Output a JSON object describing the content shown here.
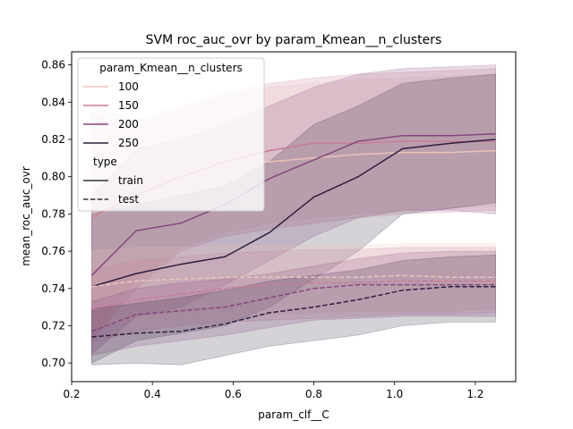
{
  "chart_data": {
    "type": "line",
    "title": "SVM roc_auc_ovr by param_Kmean__n_clusters",
    "xlabel": "param_clf__C",
    "ylabel": "mean_roc_auc_ovr",
    "xlim": [
      0.2,
      1.3
    ],
    "ylim": [
      0.69,
      0.867
    ],
    "xticks": [
      "0.2",
      "0.4",
      "0.6",
      "0.8",
      "1.0",
      "1.2"
    ],
    "yticks": [
      "0.70",
      "0.72",
      "0.74",
      "0.76",
      "0.78",
      "0.80",
      "0.82",
      "0.84",
      "0.86"
    ],
    "x": [
      0.25,
      0.36,
      0.47,
      0.58,
      0.69,
      0.8,
      0.91,
      1.02,
      1.14,
      1.25
    ],
    "grid": false,
    "legend": {
      "placement": "top-left",
      "hue_title": "param_Kmean__n_clusters",
      "style_title": "type",
      "hue_entries": [
        "100",
        "150",
        "200",
        "250"
      ],
      "style_entries": [
        "train",
        "test"
      ]
    },
    "colors": {
      "100": "#ebc4b8",
      "150": "#c97b98",
      "200": "#85487d",
      "250": "#2d1e3e"
    },
    "series": [
      {
        "name": "100",
        "type": "train",
        "values": [
          0.778,
          0.789,
          0.802,
          0.807,
          0.808,
          0.81,
          0.812,
          0.813,
          0.813,
          0.814
        ],
        "lower": [
          0.715,
          0.745,
          0.762,
          0.77,
          0.775,
          0.778,
          0.78,
          0.781,
          0.783,
          0.784
        ],
        "upper": [
          0.833,
          0.826,
          0.836,
          0.843,
          0.848,
          0.85,
          0.852,
          0.853,
          0.854,
          0.855
        ]
      },
      {
        "name": "150",
        "type": "train",
        "values": [
          0.778,
          0.79,
          0.8,
          0.808,
          0.814,
          0.818,
          0.818,
          0.819,
          0.819,
          0.819
        ],
        "lower": [
          0.712,
          0.74,
          0.76,
          0.768,
          0.772,
          0.775,
          0.778,
          0.78,
          0.781,
          0.782
        ],
        "upper": [
          0.838,
          0.83,
          0.838,
          0.845,
          0.85,
          0.853,
          0.855,
          0.856,
          0.857,
          0.858
        ]
      },
      {
        "name": "200",
        "type": "train",
        "values": [
          0.747,
          0.771,
          0.775,
          0.785,
          0.799,
          0.809,
          0.819,
          0.822,
          0.822,
          0.823
        ],
        "lower": [
          0.705,
          0.725,
          0.73,
          0.742,
          0.755,
          0.768,
          0.778,
          0.782,
          0.782,
          0.78
        ],
        "upper": [
          0.79,
          0.815,
          0.82,
          0.828,
          0.838,
          0.848,
          0.855,
          0.858,
          0.859,
          0.86
        ]
      },
      {
        "name": "250",
        "type": "train",
        "values": [
          0.741,
          0.748,
          0.753,
          0.757,
          0.77,
          0.789,
          0.8,
          0.815,
          0.818,
          0.82
        ],
        "lower": [
          0.7,
          0.712,
          0.716,
          0.72,
          0.73,
          0.745,
          0.76,
          0.78,
          0.783,
          0.786
        ],
        "upper": [
          0.78,
          0.785,
          0.79,
          0.795,
          0.808,
          0.828,
          0.838,
          0.85,
          0.853,
          0.855
        ]
      },
      {
        "name": "100",
        "type": "test",
        "values": [
          0.741,
          0.744,
          0.745,
          0.746,
          0.746,
          0.746,
          0.746,
          0.747,
          0.746,
          0.746
        ],
        "lower": [
          0.718,
          0.724,
          0.725,
          0.726,
          0.726,
          0.727,
          0.728,
          0.728,
          0.728,
          0.729
        ],
        "upper": [
          0.76,
          0.762,
          0.762,
          0.763,
          0.763,
          0.763,
          0.763,
          0.764,
          0.764,
          0.764
        ]
      },
      {
        "name": "150",
        "type": "test",
        "values": [
          0.729,
          0.734,
          0.737,
          0.74,
          0.742,
          0.743,
          0.743,
          0.744,
          0.744,
          0.744
        ],
        "lower": [
          0.711,
          0.717,
          0.72,
          0.722,
          0.723,
          0.724,
          0.725,
          0.726,
          0.726,
          0.727
        ],
        "upper": [
          0.75,
          0.755,
          0.757,
          0.759,
          0.76,
          0.761,
          0.761,
          0.762,
          0.762,
          0.762
        ]
      },
      {
        "name": "200",
        "type": "test",
        "values": [
          0.717,
          0.726,
          0.728,
          0.73,
          0.735,
          0.74,
          0.742,
          0.742,
          0.742,
          0.742
        ],
        "lower": [
          0.704,
          0.709,
          0.712,
          0.715,
          0.719,
          0.723,
          0.724,
          0.725,
          0.725,
          0.725
        ],
        "upper": [
          0.733,
          0.74,
          0.743,
          0.745,
          0.748,
          0.752,
          0.756,
          0.759,
          0.76,
          0.76
        ]
      },
      {
        "name": "250",
        "type": "test",
        "values": [
          0.714,
          0.716,
          0.717,
          0.721,
          0.727,
          0.73,
          0.734,
          0.739,
          0.741,
          0.741
        ],
        "lower": [
          0.699,
          0.7,
          0.699,
          0.704,
          0.709,
          0.712,
          0.715,
          0.72,
          0.722,
          0.722
        ],
        "upper": [
          0.729,
          0.732,
          0.735,
          0.739,
          0.744,
          0.747,
          0.75,
          0.755,
          0.757,
          0.758
        ]
      }
    ]
  }
}
